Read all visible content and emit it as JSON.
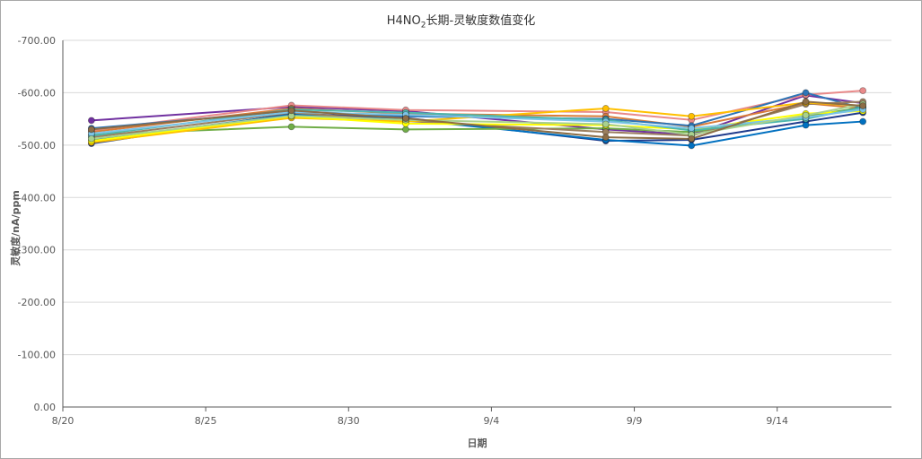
{
  "chart_data": {
    "type": "line",
    "title_prefix": "H4NO",
    "title_sub": "2",
    "title_suffix": "长期-灵敏度数值变化",
    "xlabel": "日期",
    "ylabel": "灵敏度/nA/ppm",
    "x_ticks": [
      "8/20",
      "8/25",
      "8/30",
      "9/4",
      "9/9",
      "9/14"
    ],
    "y_ticks": [
      "0.00",
      "-100.00",
      "-200.00",
      "-300.00",
      "-400.00",
      "-500.00",
      "-600.00",
      "-700.00"
    ],
    "ylim": [
      0,
      -700
    ],
    "x_dates": [
      "8/21",
      "8/28",
      "9/1",
      "9/8",
      "9/11",
      "9/15",
      "9/17"
    ],
    "legend": "none",
    "grid": "horizontal",
    "series": [
      {
        "color": "#7030a0",
        "values": [
          -547,
          -573,
          -565,
          -530,
          -520,
          -595,
          -580
        ]
      },
      {
        "color": "#e98a8a",
        "values": [
          -528,
          -576,
          -567,
          -563,
          -548,
          -596,
          -604
        ]
      },
      {
        "color": "#d97c3a",
        "values": [
          -525,
          -570,
          -560,
          -555,
          -535,
          -580,
          -570
        ]
      },
      {
        "color": "#2e75b6",
        "values": [
          -532,
          -565,
          -555,
          -550,
          -537,
          -600,
          -570
        ]
      },
      {
        "color": "#1f3b8c",
        "values": [
          -503,
          -560,
          -552,
          -508,
          -510,
          -545,
          -562
        ]
      },
      {
        "color": "#0070c0",
        "values": [
          -510,
          -558,
          -549,
          -510,
          -499,
          -538,
          -545
        ]
      },
      {
        "color": "#70ad47",
        "values": [
          -520,
          -535,
          -530,
          -532,
          -525,
          -555,
          -572
        ]
      },
      {
        "color": "#9b7f5f",
        "values": [
          -515,
          -562,
          -546,
          -525,
          -518,
          -578,
          -583
        ]
      },
      {
        "color": "#ffc000",
        "values": [
          -505,
          -552,
          -545,
          -570,
          -555,
          -581,
          -575
        ]
      },
      {
        "color": "#ffff00",
        "values": [
          -508,
          -555,
          -541,
          -538,
          -530,
          -560,
          -565
        ]
      },
      {
        "color": "#4db6ac",
        "values": [
          -518,
          -568,
          -562,
          -548,
          -528,
          -550,
          -572
        ]
      },
      {
        "color": "#7cc4e8",
        "values": [
          -522,
          -563,
          -558,
          -545,
          -532,
          -553,
          -568
        ]
      },
      {
        "color": "#a9d18e",
        "values": [
          -512,
          -556,
          -548,
          -540,
          -520,
          -557,
          -578
        ]
      },
      {
        "color": "#8c6d46",
        "values": [
          -530,
          -566,
          -551,
          -515,
          -512,
          -583,
          -575
        ]
      }
    ]
  }
}
